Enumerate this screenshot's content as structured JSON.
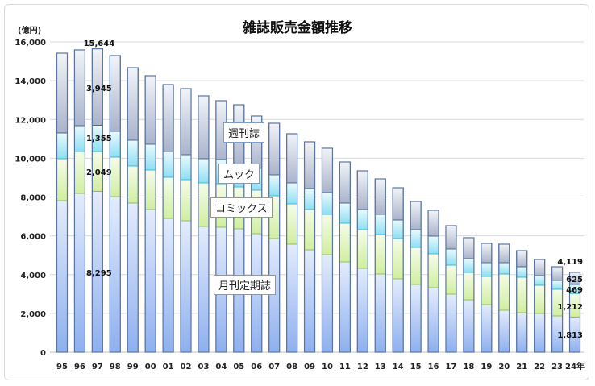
{
  "chart_data": {
    "type": "bar",
    "stacked": true,
    "title": "雑誌販売金額推移",
    "ylabel": "(億円)",
    "xlabel": "",
    "ylim": [
      0,
      16000
    ],
    "yticks": [
      "0",
      "2,000",
      "4,000",
      "6,000",
      "8,000",
      "10,000",
      "12,000",
      "14,000",
      "16,000"
    ],
    "ytick_values": [
      0,
      2000,
      4000,
      6000,
      8000,
      10000,
      12000,
      14000,
      16000
    ],
    "grid": true,
    "categories": [
      "95",
      "96",
      "97",
      "98",
      "99",
      "00",
      "01",
      "02",
      "03",
      "04",
      "05",
      "06",
      "07",
      "08",
      "09",
      "10",
      "11",
      "12",
      "13",
      "14",
      "15",
      "16",
      "17",
      "18",
      "19",
      "20",
      "21",
      "22",
      "23",
      "24年"
    ],
    "series": [
      {
        "name": "月刊定期誌",
        "color": "#9db9f0",
        "values": [
          7813,
          8188,
          8295,
          8021,
          7689,
          7357,
          6900,
          6775,
          6483,
          6442,
          6359,
          6109,
          5860,
          5569,
          5278,
          5029,
          4655,
          4322,
          4031,
          3782,
          3491,
          3325,
          2992,
          2701,
          2452,
          2161,
          2036,
          1995,
          1870,
          1813
        ]
      },
      {
        "name": "コミックス",
        "color": "#d8f0a8",
        "values": [
          2162,
          2161,
          2049,
          2037,
          1911,
          2035,
          2118,
          2119,
          2245,
          2244,
          2161,
          2245,
          2203,
          2078,
          2078,
          2078,
          1995,
          1995,
          2037,
          2078,
          1912,
          1745,
          1496,
          1413,
          1455,
          1870,
          1829,
          1455,
          1372,
          1212
        ]
      },
      {
        "name": "ムック",
        "color": "#9fe3f4",
        "values": [
          1330,
          1331,
          1355,
          1330,
          1330,
          1330,
          1331,
          1288,
          1247,
          1247,
          1163,
          1122,
          1080,
          1081,
          1081,
          1122,
          1039,
          1039,
          1039,
          956,
          914,
          915,
          832,
          707,
          706,
          582,
          540,
          498,
          457,
          469
        ]
      },
      {
        "name": "週刊誌",
        "color": "#b4bdd3",
        "values": [
          4113,
          3905,
          3945,
          3906,
          3740,
          3533,
          3449,
          3408,
          3241,
          3034,
          3076,
          2701,
          2660,
          2535,
          2410,
          2286,
          2119,
          1995,
          1828,
          1662,
          1455,
          1330,
          1205,
          1081,
          998,
          956,
          831,
          831,
          706,
          625
        ]
      }
    ],
    "annotations": {
      "y97_total": "15,644",
      "y97_weekly": "3,945",
      "y97_mook": "1,355",
      "y97_comics": "2,049",
      "y97_monthly": "8,295",
      "y24_total": "4,119",
      "y24_weekly": "625",
      "y24_mook": "469",
      "y24_comics": "1,212",
      "y24_monthly": "1,813"
    },
    "legend": [
      "週刊誌",
      "ムック",
      "コミックス",
      "月刊定期誌"
    ],
    "legend_placement": "inline-center"
  }
}
